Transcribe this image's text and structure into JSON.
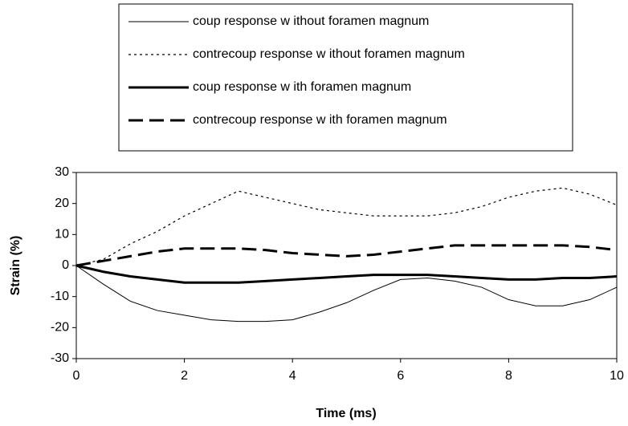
{
  "chart_data": {
    "type": "line",
    "x_label": "Time (ms)",
    "y_label": "Strain (%)",
    "x": [
      0,
      0.5,
      1,
      1.5,
      2,
      2.5,
      3,
      3.5,
      4,
      4.5,
      5,
      5.5,
      6,
      6.5,
      7,
      7.5,
      8,
      8.5,
      9,
      9.5,
      10
    ],
    "xlim": [
      0,
      10
    ],
    "xticks": [
      0,
      2,
      4,
      6,
      8,
      10
    ],
    "ylim": [
      -30,
      30
    ],
    "yticks": [
      -30,
      -20,
      -10,
      0,
      10,
      20,
      30
    ],
    "legend": "top",
    "series": [
      {
        "name": "coup response w ithout foramen magnum",
        "color": "#000000",
        "width": 1,
        "dash": "solid",
        "values": [
          0,
          -6,
          -11.5,
          -14.5,
          -16,
          -17.5,
          -18,
          -18,
          -17.5,
          -15,
          -12,
          -8,
          -4.5,
          -4,
          -5,
          -7,
          -11,
          -13,
          -13,
          -11,
          -7
        ]
      },
      {
        "name": "contrecoup response w ithout foramen magnum",
        "color": "#000000",
        "width": 1.2,
        "dash": "dotted",
        "values": [
          0,
          2,
          7,
          11,
          16,
          20,
          24,
          22,
          20,
          18,
          17,
          16,
          16,
          16,
          17,
          19,
          22,
          24,
          25,
          23,
          19.5
        ]
      },
      {
        "name": "coup response w ith foramen magnum",
        "color": "#000000",
        "width": 3,
        "dash": "solid",
        "values": [
          0,
          -2,
          -3.5,
          -4.5,
          -5.5,
          -5.5,
          -5.5,
          -5,
          -4.5,
          -4,
          -3.5,
          -3,
          -3,
          -3,
          -3.5,
          -4,
          -4.5,
          -4.5,
          -4,
          -4,
          -3.5
        ]
      },
      {
        "name": "contrecoup response w ith foramen magnum",
        "color": "#000000",
        "width": 3,
        "dash": "dashed",
        "values": [
          0,
          1.5,
          3,
          4.5,
          5.5,
          5.5,
          5.5,
          5,
          4,
          3.5,
          3,
          3.5,
          4.5,
          5.5,
          6.5,
          6.5,
          6.5,
          6.5,
          6.5,
          6,
          5
        ]
      }
    ]
  }
}
